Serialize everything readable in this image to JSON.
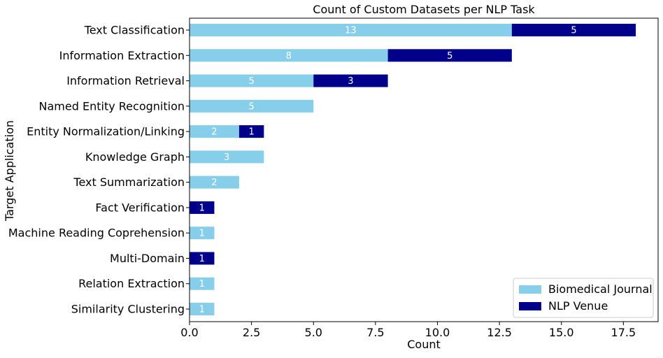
{
  "chart_data": {
    "type": "bar",
    "orientation": "horizontal",
    "stacked": true,
    "title": "Count of Custom Datasets per NLP Task",
    "xlabel": "Count",
    "ylabel": "Target Application",
    "xlim": [
      0,
      18.9
    ],
    "xticks": [
      0,
      2.5,
      5,
      7.5,
      10,
      12.5,
      15,
      17.5
    ],
    "xtick_labels": [
      "0.0",
      "2.5",
      "5.0",
      "7.5",
      "10.0",
      "12.5",
      "15.0",
      "17.5"
    ],
    "categories": [
      "Text Classification",
      "Information Extraction",
      "Information Retrieval",
      "Named Entity Recognition",
      "Entity Normalization/Linking",
      "Knowledge Graph",
      "Text Summarization",
      "Fact Verification",
      "Machine Reading Coprehension",
      "Multi-Domain",
      "Relation Extraction",
      "Similarity Clustering"
    ],
    "series": [
      {
        "name": "Biomedical Journal",
        "color": "#87ceeb",
        "values": [
          13,
          8,
          5,
          5,
          2,
          3,
          2,
          0,
          1,
          0,
          1,
          1
        ]
      },
      {
        "name": "NLP Venue",
        "color": "#00008b",
        "values": [
          5,
          5,
          3,
          0,
          1,
          0,
          0,
          1,
          0,
          1,
          0,
          0
        ]
      }
    ],
    "grid": false,
    "legend_position": "lower-right"
  }
}
